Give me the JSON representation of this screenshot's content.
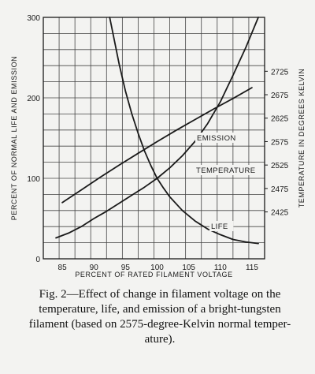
{
  "chart_data": {
    "type": "line",
    "xlabel": "PERCENT OF RATED FILAMENT VOLTAGE",
    "ylabel": "PERCENT OF NORMAL LIFE AND EMISSION",
    "y2label": "TEMPERATURE IN DEGREES KELVIN",
    "xlim": [
      82,
      117
    ],
    "ylim": [
      0,
      300
    ],
    "y2lim": [
      2325,
      2840
    ],
    "x_ticks": [
      "85",
      "90",
      "95",
      "100",
      "105",
      "110",
      "115"
    ],
    "y_ticks": [
      "0",
      "100",
      "200",
      "300"
    ],
    "y2_ticks": [
      "2425",
      "2475",
      "2525",
      "2575",
      "2625",
      "2675",
      "2725"
    ],
    "grid": true,
    "series": [
      {
        "name": "EMISSION",
        "axis": "left",
        "x": [
          84,
          86,
          88,
          90,
          92,
          94,
          96,
          98,
          100,
          102,
          104,
          106,
          108,
          110,
          112,
          114,
          116
        ],
        "y": [
          26,
          32,
          40,
          50,
          59,
          69,
          79,
          89,
          100,
          113,
          128,
          146,
          168,
          195,
          228,
          262,
          300
        ]
      },
      {
        "name": "TEMPERATURE",
        "axis": "right",
        "x": [
          85,
          88,
          91,
          94,
          97,
          100,
          103,
          106,
          109,
          112,
          115
        ],
        "y": [
          2445,
          2472,
          2499,
          2525,
          2550,
          2575,
          2599,
          2622,
          2645,
          2667,
          2690
        ]
      },
      {
        "name": "LIFE",
        "axis": "left",
        "x": [
          92.5,
          94,
          95,
          96,
          97,
          98,
          99,
          100,
          101,
          102,
          104,
          106,
          108,
          110,
          112,
          114,
          116
        ],
        "y": [
          300,
          242,
          208,
          180,
          156,
          134,
          116,
          100,
          88,
          77,
          60,
          47,
          37,
          30,
          24,
          21,
          19
        ]
      }
    ]
  },
  "caption": {
    "line1": "Fig. 2—Effect of change in filament voltage on the",
    "line2": "temperature, life, and emission of a bright-tungsten",
    "line3": "filament (based on 2575-degree-Kelvin normal temper-",
    "line4": "ature)."
  }
}
